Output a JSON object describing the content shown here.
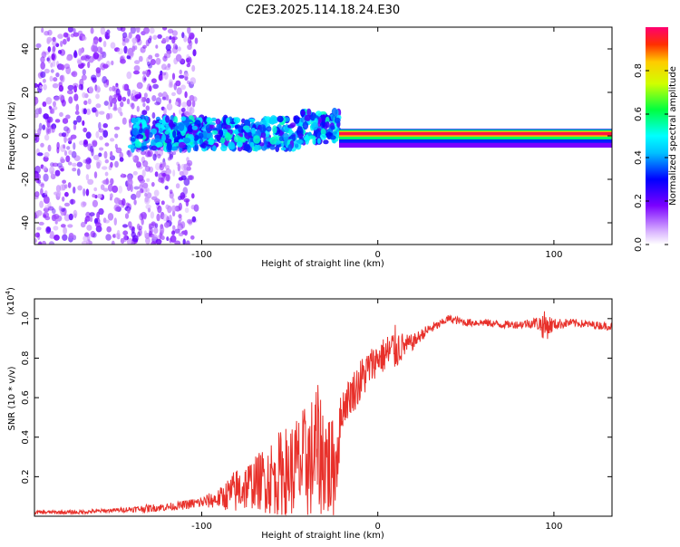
{
  "figure_title": "C2E3.2025.114.18.24.E30",
  "colors": {
    "line": "#e8302a",
    "axis": "#000000",
    "background": "#ffffff"
  },
  "chart_data": [
    {
      "type": "heatmap",
      "name": "spectrogram",
      "title": "C2E3.2025.114.18.24.E30",
      "xlabel": "Height of straight line (km)",
      "ylabel": "Frequency (Hz)",
      "xlim": [
        -195,
        133
      ],
      "ylim": [
        -50,
        50
      ],
      "xticks": [
        -100,
        0,
        100
      ],
      "xtick_labels": [
        "-100",
        "0",
        "100"
      ],
      "yticks": [
        -40,
        -20,
        0,
        20,
        40
      ],
      "ytick_labels": [
        "-40",
        "-20",
        "0",
        "20",
        "40"
      ],
      "colorbar": {
        "label": "Normalized spectral amplitude",
        "range": [
          0,
          1
        ],
        "ticks": [
          0,
          0.2,
          0.4,
          0.6,
          0.8
        ],
        "tick_labels": [
          "0.0",
          "0.2",
          "0.4",
          "0.6",
          "0.8"
        ]
      },
      "description_regions": [
        {
          "x_range": [
            -195,
            -104
          ],
          "freq_range": [
            -50,
            50
          ],
          "amplitude": 0.15,
          "pattern": "scattered noise"
        },
        {
          "x_range": [
            -140,
            -22
          ],
          "freq_range": [
            -8,
            10
          ],
          "amplitude": 0.3,
          "pattern": "noisy band"
        },
        {
          "x_range": [
            -22,
            133
          ],
          "freq_range": [
            0,
            3
          ],
          "amplitude": 0.95,
          "pattern": "coherent signal"
        }
      ]
    },
    {
      "type": "line",
      "name": "snr",
      "xlabel": "Height of straight line (km)",
      "ylabel": "SNR (10 * v/v)",
      "y_scale_label": "(x10",
      "y_scale_exponent": "4",
      "y_scale_close": ")",
      "xlim": [
        -195,
        133
      ],
      "ylim": [
        0,
        1.1
      ],
      "xticks": [
        -100,
        0,
        100
      ],
      "xtick_labels": [
        "-100",
        "0",
        "100"
      ],
      "yticks": [
        0.2,
        0.4,
        0.6,
        0.8,
        1.0
      ],
      "ytick_labels": [
        "0.2",
        "0.4",
        "0.6",
        "0.8",
        "1.0"
      ],
      "series": [
        {
          "name": "SNR",
          "x": [
            -195,
            -170,
            -150,
            -130,
            -115,
            -100,
            -90,
            -80,
            -70,
            -60,
            -50,
            -40,
            -35,
            -30,
            -25,
            -20,
            -15,
            -10,
            -5,
            0,
            5,
            10,
            15,
            20,
            25,
            30,
            35,
            40,
            50,
            60,
            70,
            80,
            90,
            95,
            100,
            110,
            120,
            133
          ],
          "y": [
            0.02,
            0.02,
            0.03,
            0.04,
            0.05,
            0.07,
            0.09,
            0.13,
            0.17,
            0.2,
            0.23,
            0.27,
            0.33,
            0.3,
            0.2,
            0.55,
            0.62,
            0.68,
            0.75,
            0.8,
            0.82,
            0.85,
            0.86,
            0.88,
            0.92,
            0.95,
            0.97,
            1.0,
            0.98,
            0.98,
            0.97,
            0.97,
            0.98,
            0.96,
            0.97,
            0.98,
            0.97,
            0.96
          ],
          "noise_amplitude": [
            0.01,
            0.01,
            0.01,
            0.02,
            0.02,
            0.03,
            0.05,
            0.12,
            0.13,
            0.2,
            0.25,
            0.3,
            0.35,
            0.3,
            0.28,
            0.1,
            0.1,
            0.12,
            0.1,
            0.08,
            0.1,
            0.12,
            0.06,
            0.04,
            0.03,
            0.03,
            0.02,
            0.02,
            0.02,
            0.02,
            0.02,
            0.02,
            0.03,
            0.08,
            0.03,
            0.02,
            0.02,
            0.02
          ]
        }
      ]
    }
  ]
}
